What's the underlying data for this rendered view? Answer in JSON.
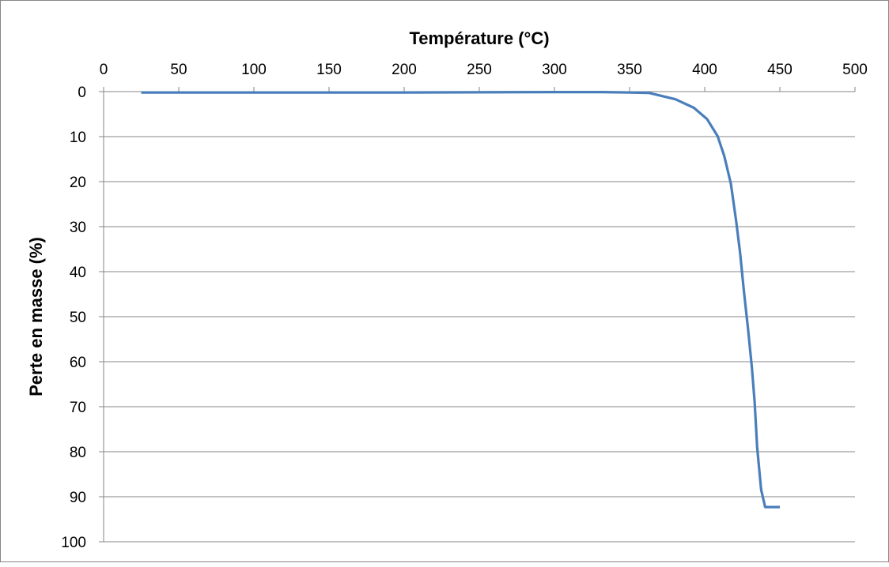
{
  "chart_data": {
    "type": "line",
    "title": "",
    "xlabel": "Température (°C)",
    "ylabel": "Perte en masse (%)",
    "xlim": [
      0,
      500
    ],
    "ylim": [
      0,
      100
    ],
    "x_axis_position": "top",
    "y_axis_inverted": true,
    "xticks": [
      "0",
      "50",
      "100",
      "150",
      "200",
      "250",
      "300",
      "350",
      "400",
      "450",
      "500"
    ],
    "yticks": [
      "0",
      "10",
      "20",
      "30",
      "40",
      "50",
      "60",
      "70",
      "80",
      "90",
      "100"
    ],
    "grid": "horizontal",
    "series_color": "#4a7ebb",
    "series": [
      {
        "name": "Perte en masse",
        "x": [
          25,
          100,
          200,
          300,
          331,
          350,
          363,
          380.5,
          392.8,
          401.6,
          408.6,
          413,
          417.4,
          420.9,
          423.5,
          426.1,
          428.8,
          431.4,
          433.2,
          434.9,
          437.5,
          440.2,
          450
        ],
        "y": [
          0.2,
          0.2,
          0.2,
          0.1,
          0.1,
          0.2,
          0.3,
          1.7,
          3.6,
          6.1,
          9.9,
          14.3,
          20.5,
          28.7,
          35.6,
          44.4,
          52.6,
          61.4,
          68.9,
          79,
          88.4,
          92.3,
          92.3
        ]
      }
    ]
  }
}
